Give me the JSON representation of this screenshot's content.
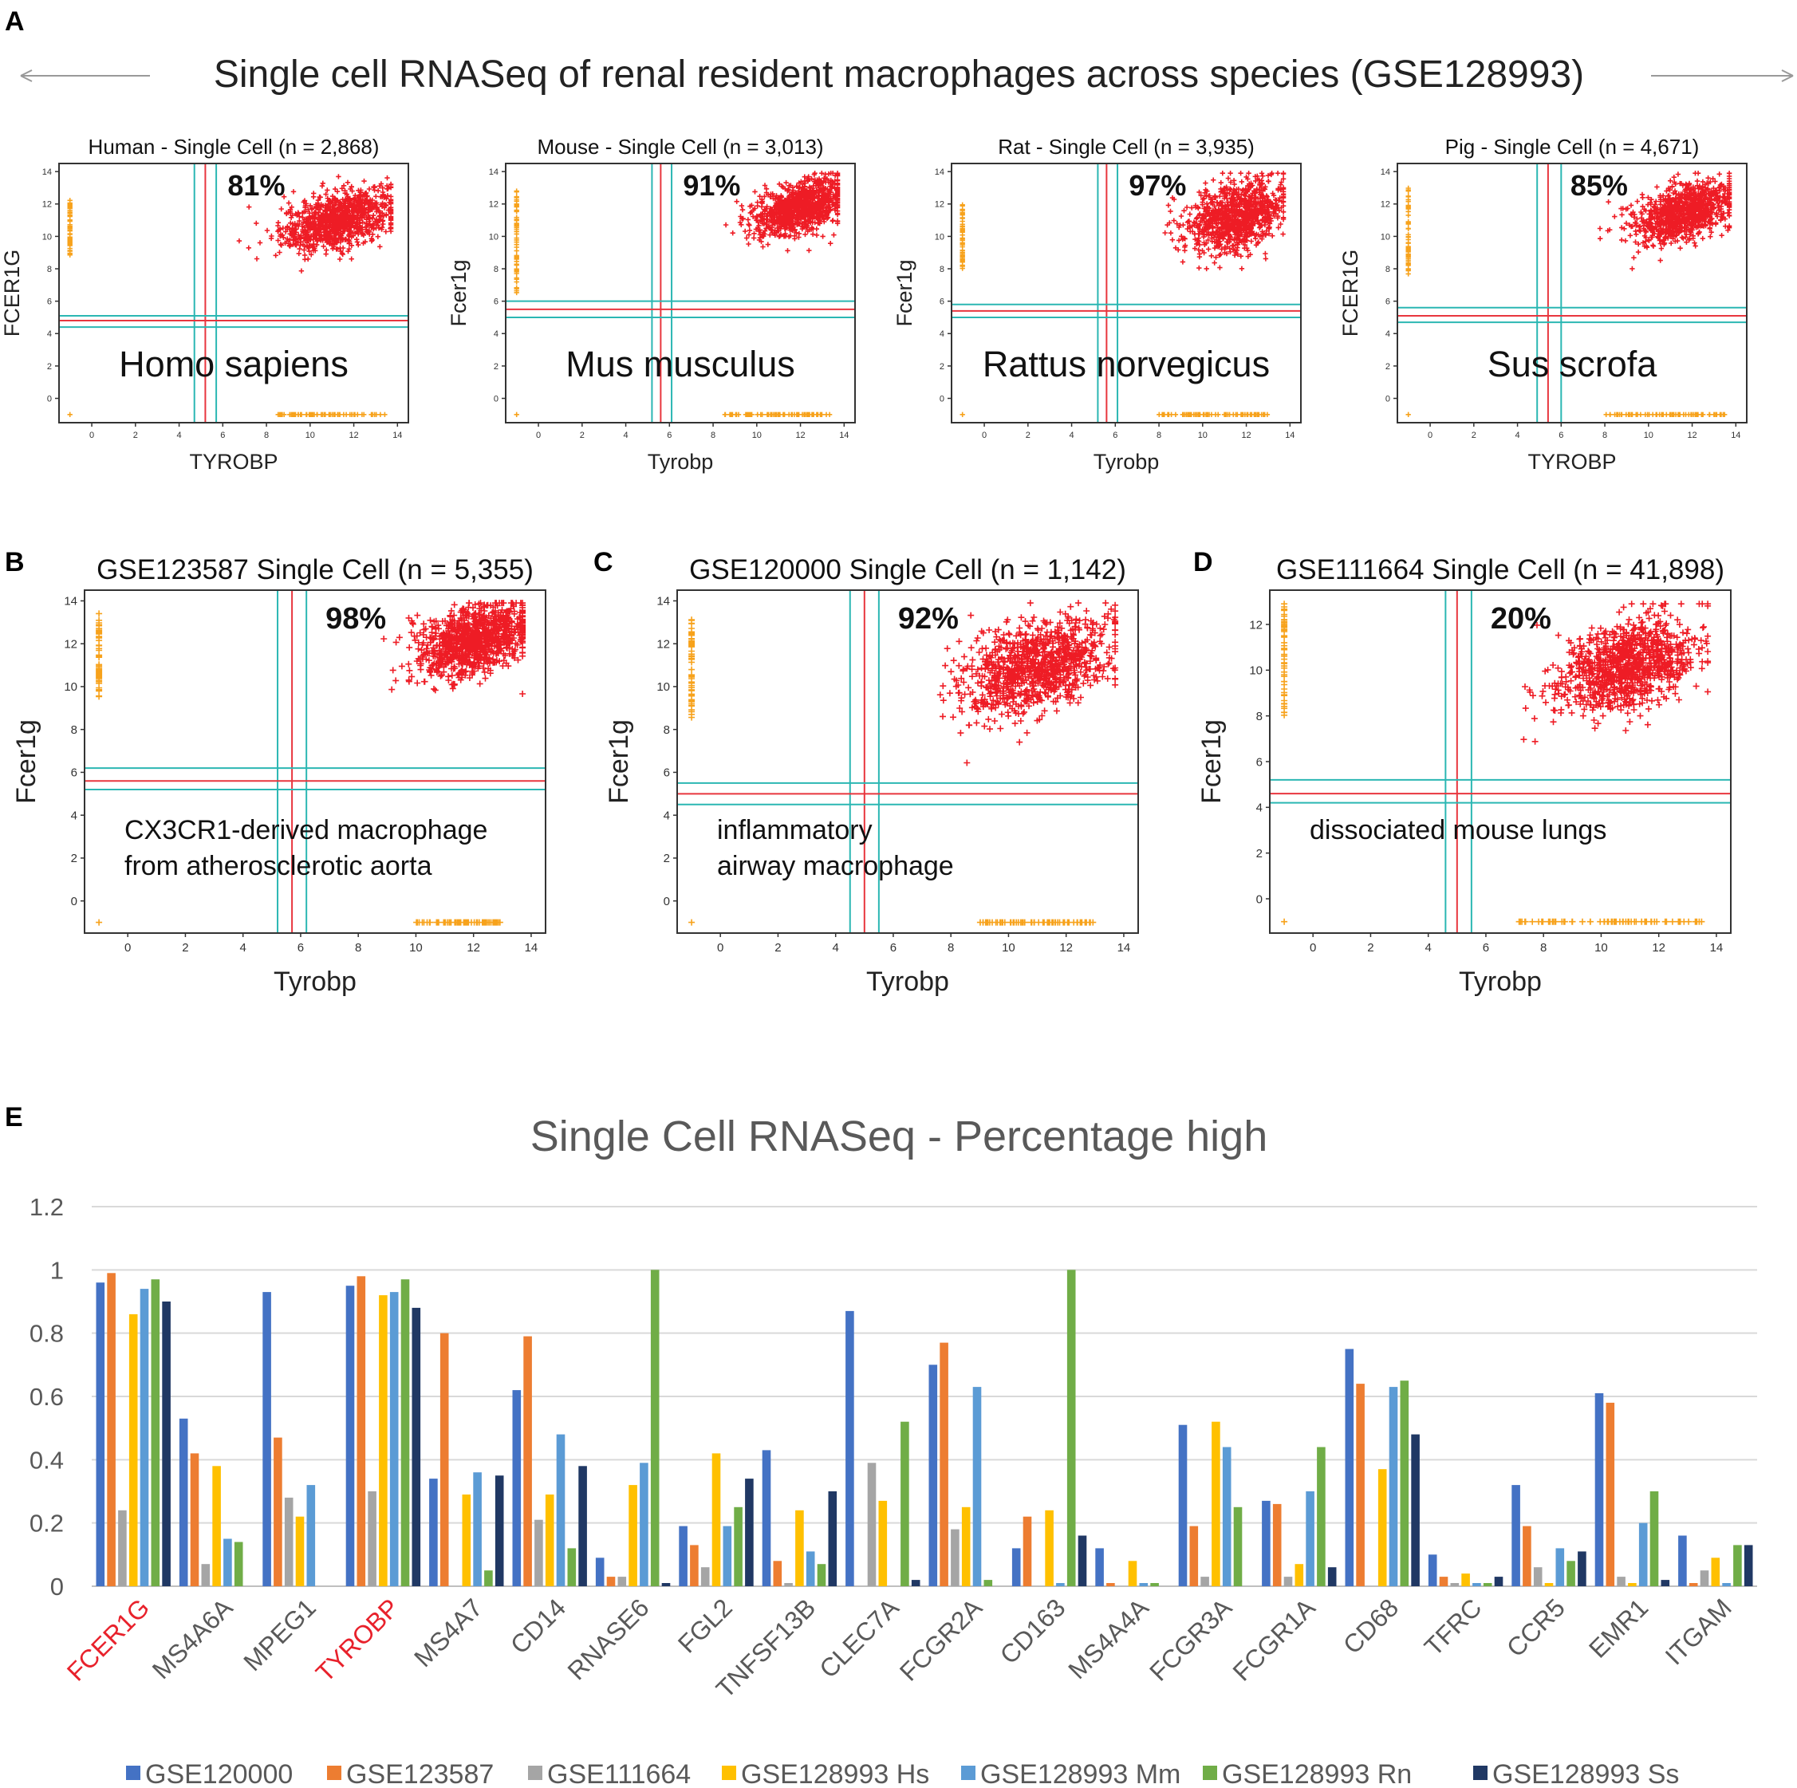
{
  "panels": [
    {
      "letter": "A"
    },
    {
      "letter": "B"
    },
    {
      "letter": "C"
    },
    {
      "letter": "D"
    },
    {
      "letter": "E"
    }
  ],
  "header_a": {
    "title": "Single cell RNASeq of renal resident macrophages across species (GSE128993)"
  },
  "colors": {
    "points": "#ee1c25",
    "outliers": "#f7a21b",
    "red_line": "#e8363e",
    "cyan_line": "#2bb7b3",
    "axis": "#333333",
    "arrow": "#999999",
    "grid": "#d9d9d9",
    "gene_highlight": "#e8212b"
  },
  "chart_data": [
    {
      "id": "human",
      "type": "scatter",
      "title": "Human - Single Cell (n = 2,868)",
      "xlabel": "TYROBP",
      "ylabel": "FCER1G",
      "percent": "81%",
      "species": "Homo sapiens",
      "xlim": [
        -1.5,
        14.5
      ],
      "ylim": [
        -1.5,
        14.5
      ],
      "xticks": [
        0,
        2,
        4,
        6,
        8,
        10,
        12,
        14
      ],
      "yticks": [
        0,
        2,
        4,
        6,
        8,
        10,
        12,
        14
      ],
      "threshold_x": {
        "red": 5.2,
        "cyan": [
          4.7,
          5.7
        ]
      },
      "threshold_y": {
        "red": 4.8,
        "cyan": [
          4.4,
          5.1
        ]
      },
      "cluster": {
        "cx": 11.3,
        "cy": 11.0,
        "sx": 1.3,
        "sy": 1.0,
        "n": 1000
      },
      "left_column": {
        "x": -1.0,
        "y_range": [
          8.8,
          12.3
        ]
      },
      "bottom_row": {
        "y": -1.0,
        "x_range": [
          8.5,
          13.5
        ]
      }
    },
    {
      "id": "mouse",
      "type": "scatter",
      "title": "Mouse - Single Cell (n = 3,013)",
      "xlabel": "Tyrobp",
      "ylabel": "Fcer1g",
      "percent": "91%",
      "species": "Mus musculus",
      "xlim": [
        -1.5,
        14.5
      ],
      "ylim": [
        -1.5,
        14.5
      ],
      "xticks": [
        0,
        2,
        4,
        6,
        8,
        10,
        12,
        14
      ],
      "yticks": [
        0,
        2,
        4,
        6,
        8,
        10,
        12,
        14
      ],
      "threshold_x": {
        "red": 5.6,
        "cyan": [
          5.2,
          6.1
        ]
      },
      "threshold_y": {
        "red": 5.5,
        "cyan": [
          5.0,
          6.0
        ]
      },
      "cluster": {
        "cx": 12.0,
        "cy": 11.8,
        "sx": 1.1,
        "sy": 0.9,
        "n": 1000
      },
      "left_column": {
        "x": -1.0,
        "y_range": [
          6.5,
          12.8
        ]
      },
      "bottom_row": {
        "y": -1.0,
        "x_range": [
          8.5,
          13.5
        ]
      }
    },
    {
      "id": "rat",
      "type": "scatter",
      "title": "Rat - Single Cell (n = 3,935)",
      "xlabel": "Tyrobp",
      "ylabel": "Fcer1g",
      "percent": "97%",
      "species": "Rattus norvegicus",
      "xlim": [
        -1.5,
        14.5
      ],
      "ylim": [
        -1.5,
        14.5
      ],
      "xticks": [
        0,
        2,
        4,
        6,
        8,
        10,
        12,
        14
      ],
      "yticks": [
        0,
        2,
        4,
        6,
        8,
        10,
        12,
        14
      ],
      "threshold_x": {
        "red": 5.6,
        "cyan": [
          5.2,
          6.1
        ]
      },
      "threshold_y": {
        "red": 5.4,
        "cyan": [
          5.0,
          5.8
        ]
      },
      "cluster": {
        "cx": 11.5,
        "cy": 11.2,
        "sx": 1.1,
        "sy": 1.2,
        "n": 1000
      },
      "left_column": {
        "x": -1.0,
        "y_range": [
          8.0,
          12.0
        ]
      },
      "bottom_row": {
        "y": -1.0,
        "x_range": [
          8.0,
          13.0
        ]
      }
    },
    {
      "id": "pig",
      "type": "scatter",
      "title": "Pig - Single Cell (n = 4,671)",
      "xlabel": "TYROBP",
      "ylabel": "FCER1G",
      "percent": "85%",
      "species": "Sus scrofa",
      "xlim": [
        -1.5,
        14.5
      ],
      "ylim": [
        -1.5,
        14.5
      ],
      "xticks": [
        0,
        2,
        4,
        6,
        8,
        10,
        12,
        14
      ],
      "yticks": [
        0,
        2,
        4,
        6,
        8,
        10,
        12,
        14
      ],
      "threshold_x": {
        "red": 5.4,
        "cyan": [
          4.9,
          6.0
        ]
      },
      "threshold_y": {
        "red": 5.1,
        "cyan": [
          4.7,
          5.6
        ]
      },
      "cluster": {
        "cx": 11.6,
        "cy": 11.5,
        "sx": 1.2,
        "sy": 1.0,
        "n": 1000
      },
      "left_column": {
        "x": -1.0,
        "y_range": [
          7.5,
          13.0
        ]
      },
      "bottom_row": {
        "y": -1.0,
        "x_range": [
          8.0,
          13.5
        ]
      }
    },
    {
      "id": "b",
      "type": "scatter",
      "title": "GSE123587 Single Cell (n = 5,355)",
      "xlabel": "Tyrobp",
      "ylabel": "Fcer1g",
      "percent": "98%",
      "description": [
        "CX3CR1-derived macrophage",
        "from atherosclerotic aorta"
      ],
      "xlim": [
        -1.5,
        14.5
      ],
      "ylim": [
        -1.5,
        14.5
      ],
      "xticks": [
        0,
        2,
        4,
        6,
        8,
        10,
        12,
        14
      ],
      "yticks": [
        0,
        2,
        4,
        6,
        8,
        10,
        12,
        14
      ],
      "threshold_x": {
        "red": 5.7,
        "cyan": [
          5.2,
          6.2
        ]
      },
      "threshold_y": {
        "red": 5.6,
        "cyan": [
          5.2,
          6.2
        ]
      },
      "cluster": {
        "cx": 12.0,
        "cy": 12.2,
        "sx": 1.0,
        "sy": 0.9,
        "n": 1000
      },
      "left_column": {
        "x": -1.0,
        "y_range": [
          9.5,
          13.5
        ]
      },
      "bottom_row": {
        "y": -1.0,
        "x_range": [
          10.0,
          13.0
        ]
      }
    },
    {
      "id": "c",
      "type": "scatter",
      "title": "GSE120000 Single Cell (n = 1,142)",
      "xlabel": "Tyrobp",
      "ylabel": "Fcer1g",
      "percent": "92%",
      "description": [
        "inflammatory",
        "airway macrophage"
      ],
      "xlim": [
        -1.5,
        14.5
      ],
      "ylim": [
        -1.5,
        14.5
      ],
      "xticks": [
        0,
        2,
        4,
        6,
        8,
        10,
        12,
        14
      ],
      "yticks": [
        0,
        2,
        4,
        6,
        8,
        10,
        12,
        14
      ],
      "threshold_x": {
        "red": 5.0,
        "cyan": [
          4.5,
          5.5
        ]
      },
      "threshold_y": {
        "red": 5.0,
        "cyan": [
          4.5,
          5.5
        ]
      },
      "cluster": {
        "cx": 10.9,
        "cy": 10.9,
        "sx": 1.3,
        "sy": 1.2,
        "n": 1000
      },
      "left_column": {
        "x": -1.0,
        "y_range": [
          8.5,
          13.2
        ]
      },
      "bottom_row": {
        "y": -1.0,
        "x_range": [
          9.0,
          13.0
        ]
      }
    },
    {
      "id": "d",
      "type": "scatter",
      "title": "GSE111664 Single Cell (n = 41,898)",
      "xlabel": "Tyrobp",
      "ylabel": "Fcer1g",
      "percent": "20%",
      "description": [
        "dissociated mouse lungs"
      ],
      "xlim": [
        -1.5,
        14.5
      ],
      "ylim": [
        -1.5,
        13.5
      ],
      "xticks": [
        0,
        2,
        4,
        6,
        8,
        10,
        12,
        14
      ],
      "yticks": [
        0,
        2,
        4,
        6,
        8,
        10,
        12
      ],
      "threshold_x": {
        "red": 5.0,
        "cyan": [
          4.6,
          5.5
        ]
      },
      "threshold_y": {
        "red": 4.6,
        "cyan": [
          4.2,
          5.2
        ]
      },
      "cluster": {
        "cx": 10.9,
        "cy": 10.2,
        "sx": 1.2,
        "sy": 1.1,
        "n": 1000
      },
      "left_column": {
        "x": -1.0,
        "y_range": [
          8.0,
          13.0
        ]
      },
      "bottom_row": {
        "y": -1.0,
        "x_range": [
          7.0,
          13.5
        ]
      }
    },
    {
      "id": "e",
      "type": "bar",
      "title": "Single Cell RNASeq - Percentage high",
      "ylim": [
        0,
        1.2
      ],
      "yticks": [
        "0",
        "0.2",
        "0.4",
        "0.6",
        "0.8",
        "1",
        "1.2"
      ],
      "categories": [
        "FCER1G",
        "MS4A6A",
        "MPEG1",
        "TYROBP",
        "MS4A7",
        "CD14",
        "RNASE6",
        "FGL2",
        "TNFSF13B",
        "CLEC7A",
        "FCGR2A",
        "CD163",
        "MS4A4A",
        "FCGR3A",
        "FCGR1A",
        "CD68",
        "TFRC",
        "CCR5",
        "EMR1",
        "ITGAM"
      ],
      "highlighted_categories": [
        "FCER1G",
        "TYROBP"
      ],
      "series": [
        {
          "name": "GSE120000",
          "color": "#4472c4",
          "values": [
            0.96,
            0.53,
            0.93,
            0.95,
            0.34,
            0.62,
            0.09,
            0.19,
            0.43,
            0.87,
            0.7,
            0.12,
            0.12,
            0.51,
            0.27,
            0.75,
            0.1,
            0.32,
            0.61,
            0.16
          ]
        },
        {
          "name": "GSE123587",
          "color": "#ed7d31",
          "values": [
            0.99,
            0.42,
            0.47,
            0.98,
            0.8,
            0.79,
            0.03,
            0.13,
            0.08,
            0.0,
            0.77,
            0.22,
            0.01,
            0.19,
            0.26,
            0.64,
            0.03,
            0.19,
            0.58,
            0.01
          ]
        },
        {
          "name": "GSE111664",
          "color": "#a5a5a5",
          "values": [
            0.24,
            0.07,
            0.28,
            0.3,
            0.0,
            0.21,
            0.03,
            0.06,
            0.01,
            0.39,
            0.18,
            0.0,
            0.0,
            0.03,
            0.03,
            0.0,
            0.01,
            0.06,
            0.03,
            0.05
          ]
        },
        {
          "name": "GSE128993 Hs",
          "color": "#ffc000",
          "values": [
            0.86,
            0.38,
            0.22,
            0.92,
            0.29,
            0.29,
            0.32,
            0.42,
            0.24,
            0.27,
            0.25,
            0.24,
            0.08,
            0.52,
            0.07,
            0.37,
            0.04,
            0.01,
            0.01,
            0.09
          ]
        },
        {
          "name": "GSE128993 Mm",
          "color": "#5b9bd5",
          "values": [
            0.94,
            0.15,
            0.32,
            0.93,
            0.36,
            0.48,
            0.39,
            0.19,
            0.11,
            0.0,
            0.63,
            0.01,
            0.01,
            0.44,
            0.3,
            0.63,
            0.01,
            0.12,
            0.2,
            0.01
          ]
        },
        {
          "name": "GSE128993 Rn",
          "color": "#70ad47",
          "values": [
            0.97,
            0.14,
            0.0,
            0.97,
            0.05,
            0.12,
            1.0,
            0.25,
            0.07,
            0.52,
            0.02,
            1.0,
            0.01,
            0.25,
            0.44,
            0.65,
            0.01,
            0.08,
            0.3,
            0.13
          ]
        },
        {
          "name": "GSE128993 Ss",
          "color": "#203864",
          "values": [
            0.9,
            0.0,
            0.0,
            0.88,
            0.35,
            0.38,
            0.01,
            0.34,
            0.3,
            0.02,
            0.0,
            0.16,
            0.0,
            0.0,
            0.06,
            0.48,
            0.03,
            0.11,
            0.02,
            0.13
          ]
        }
      ]
    }
  ]
}
